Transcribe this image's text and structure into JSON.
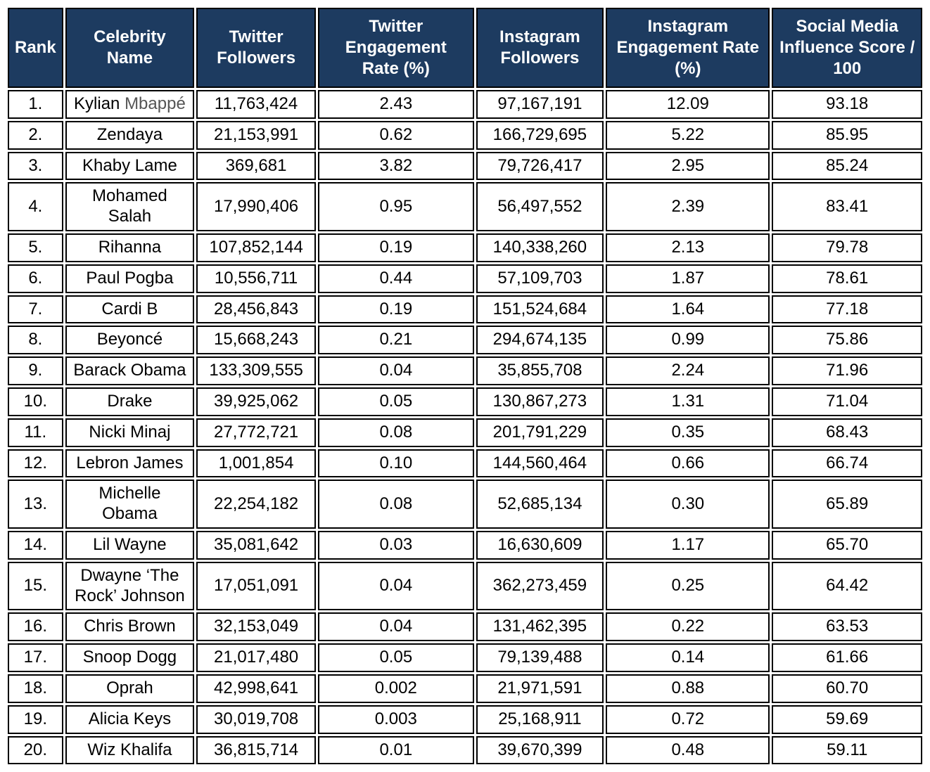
{
  "table": {
    "header_bg": "#1d3b60",
    "header_fg": "#ffffff",
    "border_color": "#000000",
    "cell_bg": "#ffffff",
    "cell_fg": "#000000",
    "font_family": "Helvetica Neue",
    "header_fontsize_pt": 18,
    "cell_fontsize_pt": 18,
    "columns": [
      {
        "key": "rank",
        "label": "Rank"
      },
      {
        "key": "name",
        "label": "Celebrity Name"
      },
      {
        "key": "twitter_followers",
        "label": "Twitter Followers"
      },
      {
        "key": "twitter_engagement",
        "label": "Twitter Engagement Rate (%)"
      },
      {
        "key": "instagram_followers",
        "label": "Instagram Followers"
      },
      {
        "key": "instagram_engagement",
        "label": "Instagram Engagement Rate (%)"
      },
      {
        "key": "score",
        "label": "Social Media Influence Score / 100"
      }
    ],
    "rows": [
      {
        "rank": "1.",
        "name": "Kylian Mbappé",
        "twitter_followers": "11,763,424",
        "twitter_engagement": "2.43",
        "instagram_followers": "97,167,191",
        "instagram_engagement": "12.09",
        "score": "93.18"
      },
      {
        "rank": "2.",
        "name": "Zendaya",
        "twitter_followers": "21,153,991",
        "twitter_engagement": "0.62",
        "instagram_followers": "166,729,695",
        "instagram_engagement": "5.22",
        "score": "85.95"
      },
      {
        "rank": "3.",
        "name": "Khaby Lame",
        "twitter_followers": "369,681",
        "twitter_engagement": "3.82",
        "instagram_followers": "79,726,417",
        "instagram_engagement": "2.95",
        "score": "85.24"
      },
      {
        "rank": "4.",
        "name": "Mohamed Salah",
        "twitter_followers": "17,990,406",
        "twitter_engagement": "0.95",
        "instagram_followers": "56,497,552",
        "instagram_engagement": "2.39",
        "score": "83.41"
      },
      {
        "rank": "5.",
        "name": "Rihanna",
        "twitter_followers": "107,852,144",
        "twitter_engagement": "0.19",
        "instagram_followers": "140,338,260",
        "instagram_engagement": "2.13",
        "score": "79.78"
      },
      {
        "rank": "6.",
        "name": "Paul Pogba",
        "twitter_followers": "10,556,711",
        "twitter_engagement": "0.44",
        "instagram_followers": "57,109,703",
        "instagram_engagement": "1.87",
        "score": "78.61"
      },
      {
        "rank": "7.",
        "name": "Cardi B",
        "twitter_followers": "28,456,843",
        "twitter_engagement": "0.19",
        "instagram_followers": "151,524,684",
        "instagram_engagement": "1.64",
        "score": "77.18"
      },
      {
        "rank": "8.",
        "name": "Beyoncé",
        "twitter_followers": "15,668,243",
        "twitter_engagement": "0.21",
        "instagram_followers": "294,674,135",
        "instagram_engagement": "0.99",
        "score": "75.86"
      },
      {
        "rank": "9.",
        "name": "Barack Obama",
        "twitter_followers": "133,309,555",
        "twitter_engagement": "0.04",
        "instagram_followers": "35,855,708",
        "instagram_engagement": "2.24",
        "score": "71.96"
      },
      {
        "rank": "10.",
        "name": "Drake",
        "twitter_followers": "39,925,062",
        "twitter_engagement": "0.05",
        "instagram_followers": "130,867,273",
        "instagram_engagement": "1.31",
        "score": "71.04"
      },
      {
        "rank": "11.",
        "name": "Nicki Minaj",
        "twitter_followers": "27,772,721",
        "twitter_engagement": "0.08",
        "instagram_followers": "201,791,229",
        "instagram_engagement": "0.35",
        "score": "68.43"
      },
      {
        "rank": "12.",
        "name": "Lebron James",
        "twitter_followers": "1,001,854",
        "twitter_engagement": "0.10",
        "instagram_followers": "144,560,464",
        "instagram_engagement": "0.66",
        "score": "66.74"
      },
      {
        "rank": "13.",
        "name": "Michelle Obama",
        "twitter_followers": "22,254,182",
        "twitter_engagement": "0.08",
        "instagram_followers": "52,685,134",
        "instagram_engagement": "0.30",
        "score": "65.89"
      },
      {
        "rank": "14.",
        "name": "Lil Wayne",
        "twitter_followers": "35,081,642",
        "twitter_engagement": "0.03",
        "instagram_followers": "16,630,609",
        "instagram_engagement": "1.17",
        "score": "65.70"
      },
      {
        "rank": "15.",
        "name": "Dwayne ‘The Rock’ Johnson",
        "twitter_followers": "17,051,091",
        "twitter_engagement": "0.04",
        "instagram_followers": "362,273,459",
        "instagram_engagement": "0.25",
        "score": "64.42"
      },
      {
        "rank": "16.",
        "name": "Chris Brown",
        "twitter_followers": "32,153,049",
        "twitter_engagement": "0.04",
        "instagram_followers": "131,462,395",
        "instagram_engagement": "0.22",
        "score": "63.53"
      },
      {
        "rank": "17.",
        "name": "Snoop Dogg",
        "twitter_followers": "21,017,480",
        "twitter_engagement": "0.05",
        "instagram_followers": "79,139,488",
        "instagram_engagement": "0.14",
        "score": "61.66"
      },
      {
        "rank": "18.",
        "name": "Oprah",
        "twitter_followers": "42,998,641",
        "twitter_engagement": "0.002",
        "instagram_followers": "21,971,591",
        "instagram_engagement": "0.88",
        "score": "60.70"
      },
      {
        "rank": "19.",
        "name": "Alicia Keys",
        "twitter_followers": "30,019,708",
        "twitter_engagement": "0.003",
        "instagram_followers": "25,168,911",
        "instagram_engagement": "0.72",
        "score": "59.69"
      },
      {
        "rank": "20.",
        "name": "Wiz Khalifa",
        "twitter_followers": "36,815,714",
        "twitter_engagement": "0.01",
        "instagram_followers": "39,670,399",
        "instagram_engagement": "0.48",
        "score": "59.11"
      }
    ]
  }
}
